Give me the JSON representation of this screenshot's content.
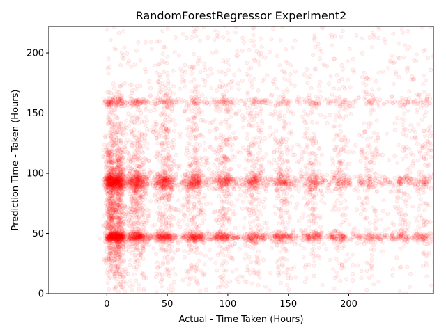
{
  "chart_data": {
    "type": "scatter",
    "title": "RandomForestRegressor Experiment2",
    "xlabel": "Actual - Time Taken (Hours)",
    "ylabel": "Prediction Time - Taken (Hours)",
    "xlim": [
      -48,
      270
    ],
    "ylim": [
      0,
      222
    ],
    "xticks": [
      0,
      50,
      100,
      150,
      200
    ],
    "xtick_labels": [
      "0",
      "50",
      "100",
      "150",
      "200"
    ],
    "yticks": [
      0,
      50,
      100,
      150,
      200
    ],
    "ytick_labels": [
      "0",
      "50",
      "100",
      "150",
      "200"
    ],
    "grid": false,
    "legend": "none",
    "marker_color": "#ff0000",
    "marker_alpha": 0.1,
    "column_centers_x": [
      3,
      10,
      25,
      48,
      73,
      97,
      122,
      145,
      170,
      193,
      218,
      245,
      262
    ],
    "column_weights": [
      1.0,
      1.0,
      0.95,
      0.75,
      0.65,
      0.55,
      0.45,
      0.4,
      0.35,
      0.28,
      0.22,
      0.2,
      0.2
    ],
    "band_centers_y": [
      47,
      93,
      159
    ],
    "band_strengths": [
      0.9,
      0.8,
      0.3
    ]
  }
}
